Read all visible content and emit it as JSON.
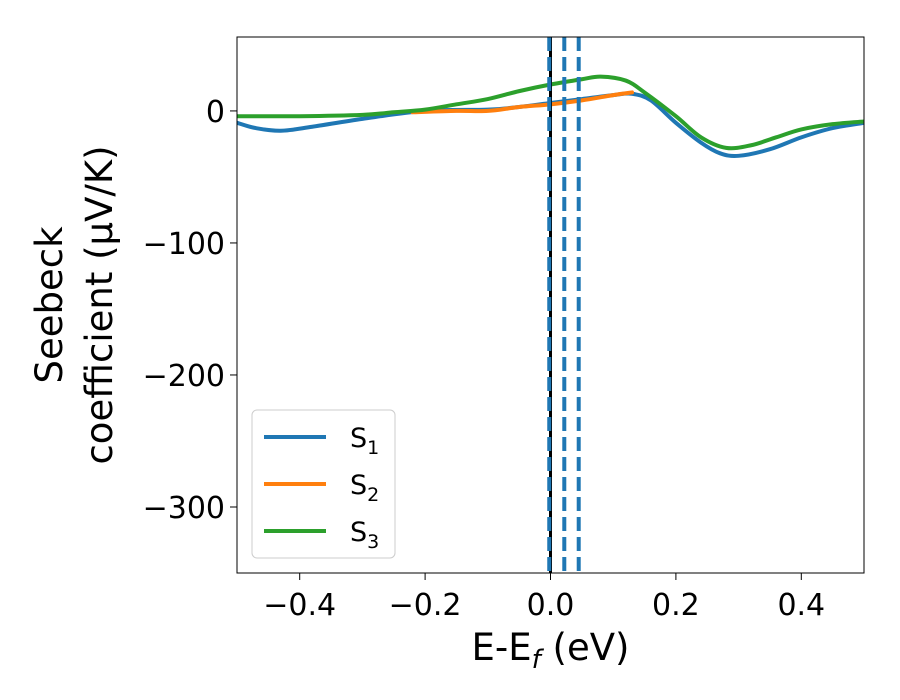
{
  "chart_data": {
    "type": "line",
    "xlabel_main": "E-E",
    "xlabel_sub": "f",
    "xlabel_unit": " (eV)",
    "ylabel_line1": "Seebeck",
    "ylabel_line2": "coefficient  (μV/K)",
    "xlim": [
      -0.5,
      0.5
    ],
    "ylim": [
      -350,
      56
    ],
    "xticks": [
      -0.4,
      -0.2,
      0.0,
      0.2,
      0.4
    ],
    "xtick_labels": [
      "−0.4",
      "−0.2",
      "0.0",
      "0.2",
      "0.4"
    ],
    "yticks": [
      0,
      -100,
      -200,
      -300
    ],
    "ytick_labels": [
      "0",
      "−100",
      "−200",
      "−300"
    ],
    "grid": false,
    "legend_position": "lower-left",
    "series": [
      {
        "name": "S",
        "name_sub": "1",
        "color": "#1f77b4",
        "x": [
          -0.5,
          -0.47,
          -0.43,
          -0.38,
          -0.3,
          -0.2,
          -0.1,
          -0.05,
          0.0,
          0.05,
          0.1,
          0.13,
          0.16,
          0.2,
          0.24,
          0.27,
          0.3,
          0.35,
          0.4,
          0.45,
          0.5
        ],
        "y": [
          -9,
          -13,
          -15,
          -12,
          -6,
          0,
          1,
          3,
          6,
          9,
          12,
          13,
          8,
          -9,
          -24,
          -32,
          -34,
          -29,
          -20,
          -13,
          -9
        ]
      },
      {
        "name": "S",
        "name_sub": "2",
        "color": "#ff7f0e",
        "x": [
          -0.22,
          -0.15,
          -0.1,
          -0.05,
          0.0,
          0.05,
          0.1,
          0.13
        ],
        "y": [
          -1,
          0,
          0,
          3,
          5,
          8,
          12,
          14
        ]
      },
      {
        "name": "S",
        "name_sub": "3",
        "color": "#2ca02c",
        "x": [
          -0.5,
          -0.4,
          -0.3,
          -0.25,
          -0.2,
          -0.15,
          -0.1,
          -0.05,
          0.0,
          0.05,
          0.08,
          0.12,
          0.15,
          0.2,
          0.24,
          0.28,
          0.32,
          0.36,
          0.4,
          0.45,
          0.5
        ],
        "y": [
          -4,
          -4,
          -3,
          -1,
          1,
          5,
          9,
          15,
          20,
          24,
          26,
          23,
          14,
          -4,
          -20,
          -28,
          -26,
          -20,
          -14,
          -10,
          -8
        ]
      }
    ],
    "vertical_lines": [
      {
        "x": 0.0,
        "color": "#000000",
        "style": "solid"
      },
      {
        "x": -0.002,
        "color": "#1f77b4",
        "style": "dashed"
      },
      {
        "x": 0.022,
        "color": "#1f77b4",
        "style": "dashed"
      },
      {
        "x": 0.045,
        "color": "#1f77b4",
        "style": "dashed"
      }
    ]
  }
}
